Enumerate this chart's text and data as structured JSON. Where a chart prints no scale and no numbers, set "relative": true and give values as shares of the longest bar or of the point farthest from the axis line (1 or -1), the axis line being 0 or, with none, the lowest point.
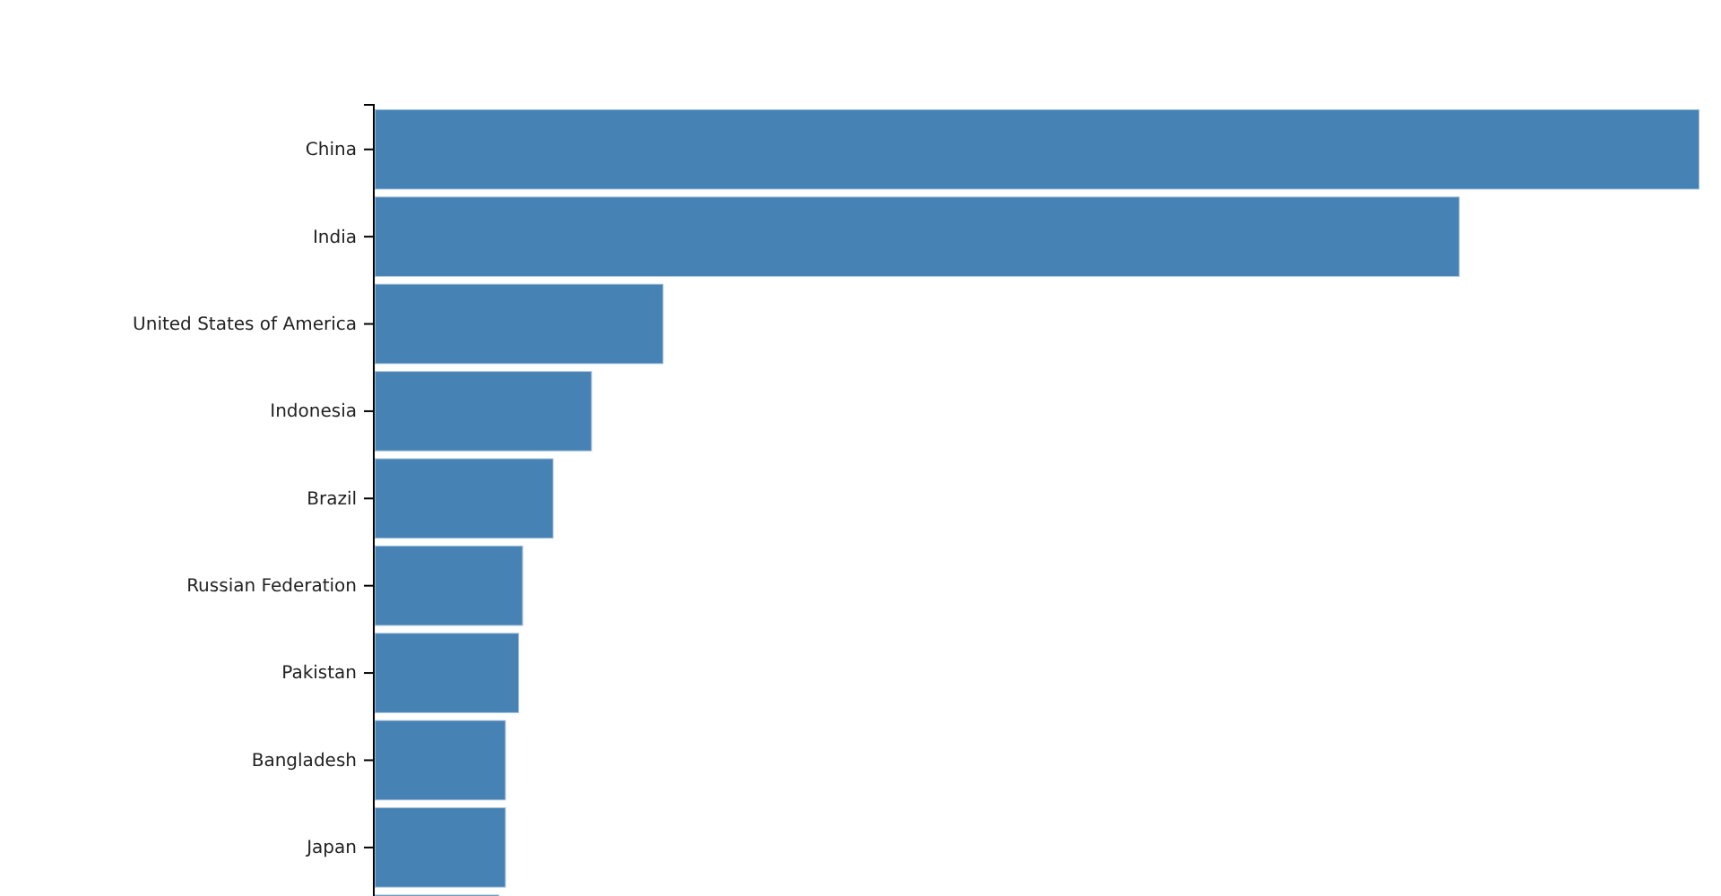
{
  "chart_data": {
    "type": "bar",
    "orientation": "horizontal",
    "relative": true,
    "categories": [
      "China",
      "India",
      "United States of America",
      "Indonesia",
      "Brazil",
      "Russian Federation",
      "Pakistan",
      "Bangladesh",
      "Japan",
      null
    ],
    "values": [
      1,
      0.819,
      0.218,
      0.164,
      0.135,
      0.112,
      0.109,
      0.099,
      0.099,
      0.094
    ],
    "color": "#4682b4"
  }
}
